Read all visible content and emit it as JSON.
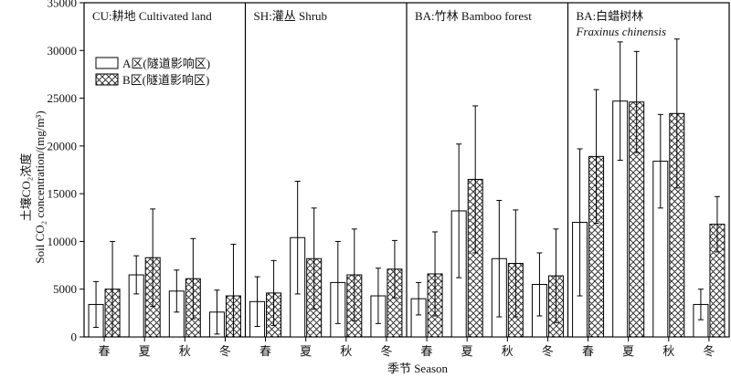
{
  "chart_data": {
    "type": "bar",
    "ylabel_line1": "土壤CO₂浓度",
    "ylabel_line2": "Soil CO₂ concentration/(mg/m³)",
    "xlabel": "季节 Season",
    "ylim": [
      0,
      35000
    ],
    "yticks": [
      0,
      5000,
      10000,
      15000,
      20000,
      25000,
      30000,
      35000
    ],
    "error_bars": true,
    "grid": false,
    "legend_placement": "upper-left inside first panel",
    "colors": {
      "A": "#ffffff",
      "B_hatch": "#222222",
      "axis": "#000000"
    },
    "series": [
      {
        "name": "A区(隧道影响区)",
        "pattern": "open"
      },
      {
        "name": "B区(隧道影响区)",
        "pattern": "crosshatch"
      }
    ],
    "panels": [
      {
        "title": "CU:耕地 Cultivated land",
        "title_italic": "",
        "categories": [
          "春",
          "夏",
          "秋",
          "冬"
        ],
        "A": {
          "values": [
            3400,
            6500,
            4800,
            2600
          ],
          "errors": [
            2400,
            2000,
            2200,
            2300
          ]
        },
        "B": {
          "values": [
            5000,
            8300,
            6100,
            4300
          ],
          "errors": [
            5000,
            5100,
            4200,
            5400
          ]
        }
      },
      {
        "title": "SH:灌丛 Shrub",
        "title_italic": "",
        "categories": [
          "春",
          "夏",
          "秋",
          "冬"
        ],
        "A": {
          "values": [
            3700,
            10400,
            5700,
            4300
          ],
          "errors": [
            2600,
            5900,
            4300,
            2900
          ]
        },
        "B": {
          "values": [
            4600,
            8200,
            6500,
            7100
          ],
          "errors": [
            3400,
            5300,
            4800,
            3000
          ]
        }
      },
      {
        "title": "BA:竹林 Bamboo forest",
        "title_italic": "",
        "categories": [
          "春",
          "夏",
          "秋",
          "冬"
        ],
        "A": {
          "values": [
            4000,
            13200,
            8200,
            5500
          ],
          "errors": [
            1700,
            7000,
            6100,
            3300
          ]
        },
        "B": {
          "values": [
            6600,
            16500,
            7700,
            6400
          ],
          "errors": [
            4400,
            7700,
            5600,
            4900
          ]
        }
      },
      {
        "title": "BA:白蜡树林",
        "title_italic": "Fraxinus chinensis",
        "categories": [
          "春",
          "夏",
          "秋",
          "冬"
        ],
        "A": {
          "values": [
            12000,
            24700,
            18400,
            3400
          ],
          "errors": [
            7700,
            6200,
            4900,
            1600
          ]
        },
        "B": {
          "values": [
            18900,
            24600,
            23400,
            11800
          ],
          "errors": [
            7000,
            5300,
            7800,
            2900
          ]
        }
      }
    ]
  }
}
